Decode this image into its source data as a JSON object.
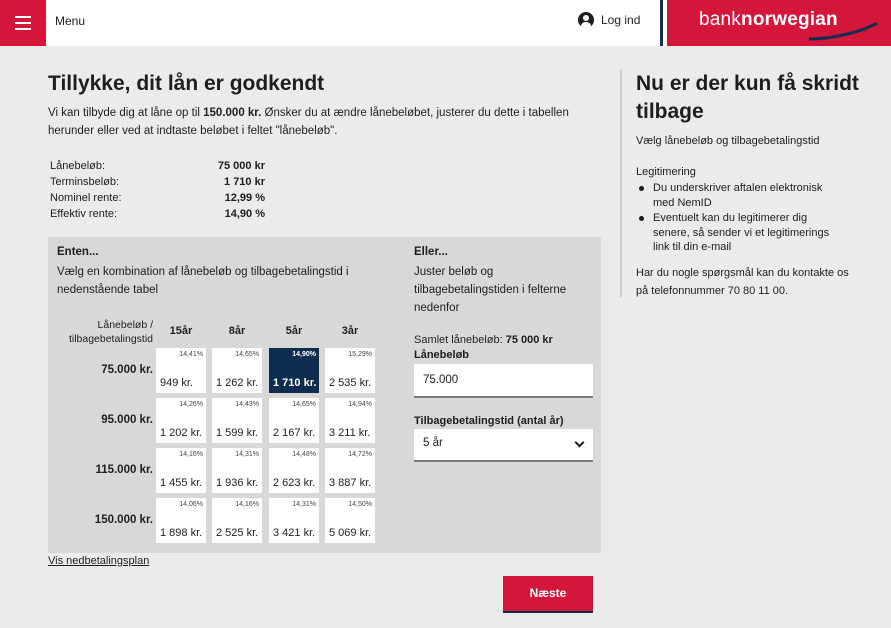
{
  "header": {
    "menu_label": "Menu",
    "login_label": "Log ind",
    "brand_light": "bank",
    "brand_bold": "norwegian"
  },
  "main": {
    "title": "Tillykke, dit lån er godkendt",
    "intro_pre": "Vi kan tilbyde dig at låne op til ",
    "intro_amount": "150.000 kr.",
    "intro_post": " Ønsker du at ændre lånebeløbet, justerer du dette i tabellen herunder eller ved at indtaste beløbet i feltet \"lånebeløb\".",
    "summary": [
      {
        "label": "Lånebeløb:",
        "value": "75 000 kr"
      },
      {
        "label": "Terminsbeløb:",
        "value": "1 710 kr"
      },
      {
        "label": "Nominel rente:",
        "value": "12,99 %"
      },
      {
        "label": "Effektiv rente:",
        "value": "14,90 %"
      }
    ]
  },
  "enten": {
    "heading": "Enten...",
    "text": "Vælg en kombination af lånebeløb og tilbagebetalingstid i nedenstående tabel",
    "corner_label": "Lånebeløb / tilbagebetalingstid",
    "columns": [
      "15år",
      "8år",
      "5år",
      "3år"
    ],
    "rows": [
      {
        "label": "75.000 kr.",
        "cells": [
          {
            "rate": "14,41%",
            "amount": "949 kr."
          },
          {
            "rate": "14,65%",
            "amount": "1 262 kr."
          },
          {
            "rate": "14,90%",
            "amount": "1 710 kr.",
            "selected": true
          },
          {
            "rate": "15,29%",
            "amount": "2 535 kr."
          }
        ]
      },
      {
        "label": "95.000 kr.",
        "cells": [
          {
            "rate": "14,26%",
            "amount": "1 202 kr."
          },
          {
            "rate": "14,43%",
            "amount": "1 599 kr."
          },
          {
            "rate": "14,65%",
            "amount": "2 167 kr."
          },
          {
            "rate": "14,94%",
            "amount": "3 211 kr."
          }
        ]
      },
      {
        "label": "115.000 kr.",
        "cells": [
          {
            "rate": "14,16%",
            "amount": "1 455 kr."
          },
          {
            "rate": "14,31%",
            "amount": "1 936 kr."
          },
          {
            "rate": "14,48%",
            "amount": "2 623 kr."
          },
          {
            "rate": "14,72%",
            "amount": "3 887 kr."
          }
        ]
      },
      {
        "label": "150.000 kr.",
        "cells": [
          {
            "rate": "14,06%",
            "amount": "1 898 kr."
          },
          {
            "rate": "14,16%",
            "amount": "2 525 kr."
          },
          {
            "rate": "14,31%",
            "amount": "3 421 kr."
          },
          {
            "rate": "14,50%",
            "amount": "5 069 kr."
          }
        ]
      }
    ]
  },
  "eller": {
    "heading": "Eller...",
    "text": "Juster beløb og tilbagebetalingstiden i felterne nedenfor",
    "samlet_label": "Samlet lånebeløb: ",
    "samlet_value": "75 000 kr",
    "laan_label": "Lånebeløb",
    "laan_value": "75.000",
    "tid_label": "Tilbagebetalingstid (antal år)",
    "tid_value": "5 år"
  },
  "vis_link": "Vis nedbetalingsplan",
  "next_button": "Næste",
  "sidebar": {
    "title": "Nu er der kun få skridt tilbage",
    "subtitle": "Vælg lånebeløb og tilbagebetalingstid",
    "legit_heading": "Legitimering",
    "legit_items": [
      "Du underskriver aftalen elektronisk med NemID",
      "Eventuelt kan du legitimerer dig senere, så sender vi et legitimerings link til din e-mail"
    ],
    "contact": "Har du nogle spørgsmål kan du kontakte os på telefonnummer 70 80 11 00."
  },
  "colors": {
    "brand_red": "#d4163a",
    "navy": "#0e2d4e",
    "background": "#ebebeb",
    "panel": "#d8d8d8"
  }
}
